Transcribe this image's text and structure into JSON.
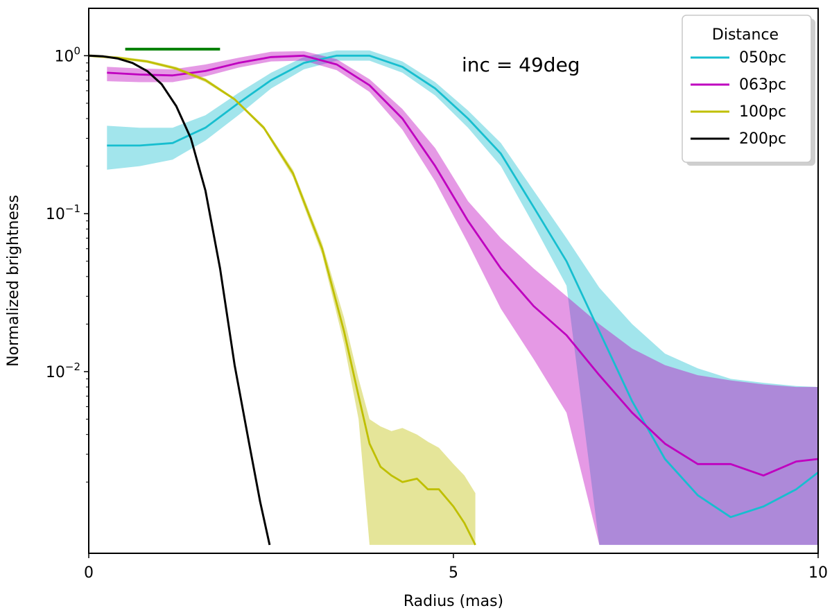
{
  "chart_data": {
    "type": "line",
    "xlabel": "Radius (mas)",
    "ylabel": "Normalized brightness",
    "xlim": [
      0,
      10
    ],
    "ylim_log10": [
      -3.15,
      0.3
    ],
    "yscale": "log",
    "x_ticks": [
      {
        "value": 0,
        "label": "0"
      },
      {
        "value": 5,
        "label": "5"
      },
      {
        "value": 10,
        "label": "10"
      }
    ],
    "y_ticks": [
      {
        "value": 1,
        "base": "10",
        "exp": "0"
      },
      {
        "value": 0.1,
        "base": "10",
        "exp": "−1"
      },
      {
        "value": 0.01,
        "base": "10",
        "exp": "−2"
      }
    ],
    "y_minor_ticks": [
      0.002,
      0.003,
      0.004,
      0.005,
      0.006,
      0.007,
      0.008,
      0.009,
      0.02,
      0.03,
      0.04,
      0.05,
      0.06,
      0.07,
      0.08,
      0.09,
      0.2,
      0.3,
      0.4,
      0.5,
      0.6,
      0.7,
      0.8,
      0.9
    ],
    "annotation": "inc = 49deg",
    "legend_title": "Distance",
    "legend_location": "top-right",
    "scale_bar": {
      "x_start": 0.5,
      "x_end": 1.8,
      "y": 1.1,
      "color": "#008000"
    },
    "series": [
      {
        "name": "050pc",
        "color": "#17becf",
        "band_color": "#17becf",
        "x": [
          0.25,
          0.7,
          1.15,
          1.6,
          2.05,
          2.5,
          2.95,
          3.4,
          3.85,
          4.3,
          4.75,
          5.2,
          5.65,
          6.1,
          6.55,
          7.0,
          7.45,
          7.9,
          8.35,
          8.8,
          9.25,
          9.7,
          10.0
        ],
        "y": [
          0.27,
          0.27,
          0.28,
          0.35,
          0.5,
          0.7,
          0.9,
          1.0,
          1.0,
          0.85,
          0.62,
          0.4,
          0.24,
          0.11,
          0.05,
          0.018,
          0.0065,
          0.0028,
          0.00165,
          0.0012,
          0.0014,
          0.0018,
          0.0023
        ],
        "y_low": [
          0.19,
          0.2,
          0.22,
          0.29,
          0.42,
          0.62,
          0.82,
          0.93,
          0.93,
          0.78,
          0.56,
          0.35,
          0.2,
          0.085,
          0.035,
          0.0008,
          0.0008,
          0.0008,
          0.0008,
          0.0008,
          0.0008,
          0.0008,
          0.0008
        ],
        "y_high": [
          0.36,
          0.35,
          0.35,
          0.42,
          0.58,
          0.78,
          0.98,
          1.08,
          1.08,
          0.92,
          0.68,
          0.45,
          0.28,
          0.14,
          0.07,
          0.034,
          0.02,
          0.013,
          0.0105,
          0.009,
          0.0085,
          0.0081,
          0.008
        ]
      },
      {
        "name": "063pc",
        "color": "#bf00bf",
        "band_color": "#bf00bf",
        "x": [
          0.25,
          0.7,
          1.15,
          1.6,
          2.05,
          2.5,
          2.95,
          3.4,
          3.85,
          4.3,
          4.75,
          5.2,
          5.65,
          6.1,
          6.55,
          7.0,
          7.45,
          7.9,
          8.35,
          8.8,
          9.25,
          9.7,
          10.0
        ],
        "y": [
          0.78,
          0.76,
          0.75,
          0.8,
          0.9,
          0.98,
          1.0,
          0.88,
          0.65,
          0.4,
          0.2,
          0.09,
          0.045,
          0.026,
          0.017,
          0.0095,
          0.0055,
          0.0035,
          0.0026,
          0.0026,
          0.0022,
          0.0027,
          0.0028
        ],
        "y_low": [
          0.69,
          0.68,
          0.68,
          0.74,
          0.84,
          0.92,
          0.93,
          0.81,
          0.59,
          0.34,
          0.16,
          0.065,
          0.025,
          0.012,
          0.0055,
          0.0008,
          0.0008,
          0.0008,
          0.0008,
          0.0008,
          0.0008,
          0.0008,
          0.0008
        ],
        "y_high": [
          0.85,
          0.83,
          0.82,
          0.88,
          0.97,
          1.06,
          1.07,
          0.95,
          0.71,
          0.46,
          0.26,
          0.12,
          0.07,
          0.045,
          0.03,
          0.02,
          0.014,
          0.011,
          0.0095,
          0.0088,
          0.0083,
          0.008,
          0.008
        ]
      },
      {
        "name": "100pc",
        "color": "#bfbf00",
        "band_color": "#bfbf00",
        "x": [
          0.0,
          0.4,
          0.8,
          1.2,
          1.6,
          2.0,
          2.4,
          2.8,
          3.2,
          3.5,
          3.7,
          3.85,
          4.0,
          4.15,
          4.3,
          4.5,
          4.65,
          4.8,
          5.0,
          5.15,
          5.3
        ],
        "y": [
          1.0,
          0.97,
          0.92,
          0.83,
          0.7,
          0.53,
          0.35,
          0.18,
          0.06,
          0.018,
          0.007,
          0.0035,
          0.0025,
          0.0022,
          0.002,
          0.0021,
          0.0018,
          0.0018,
          0.0014,
          0.0011,
          0.0008
        ],
        "y_low": [
          0.98,
          0.95,
          0.9,
          0.81,
          0.68,
          0.52,
          0.34,
          0.17,
          0.055,
          0.015,
          0.005,
          0.0008,
          0.0008,
          0.0008,
          0.0008,
          0.0008,
          0.0008,
          0.0008,
          0.0008,
          0.0008,
          0.0008
        ],
        "y_high": [
          1.02,
          0.99,
          0.94,
          0.85,
          0.72,
          0.54,
          0.36,
          0.19,
          0.065,
          0.022,
          0.009,
          0.005,
          0.0045,
          0.0042,
          0.0044,
          0.004,
          0.0036,
          0.0033,
          0.0026,
          0.0022,
          0.0017
        ]
      },
      {
        "name": "200pc",
        "color": "#000000",
        "band_color": null,
        "x": [
          0.0,
          0.2,
          0.4,
          0.6,
          0.8,
          1.0,
          1.2,
          1.4,
          1.6,
          1.8,
          2.0,
          2.2,
          2.35,
          2.48
        ],
        "y": [
          1.0,
          0.99,
          0.96,
          0.9,
          0.8,
          0.66,
          0.48,
          0.3,
          0.14,
          0.045,
          0.011,
          0.0035,
          0.0015,
          0.0008
        ]
      }
    ]
  }
}
